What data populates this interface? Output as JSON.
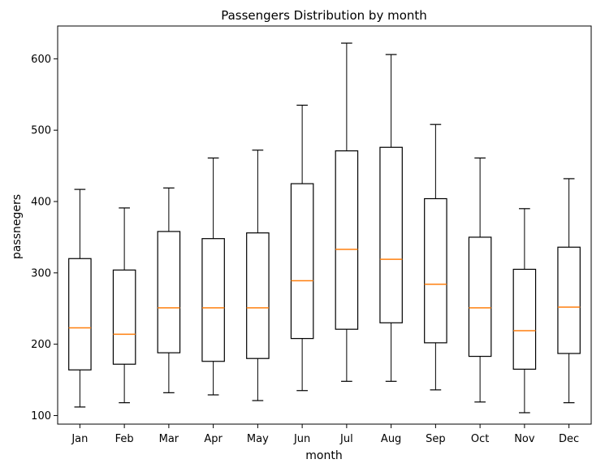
{
  "chart_data": {
    "type": "box",
    "title": "Passengers Distribution by month",
    "xlabel": "month",
    "ylabel": "passnegers",
    "ylim": [
      88,
      646
    ],
    "yticks": [
      100,
      200,
      300,
      400,
      500,
      600
    ],
    "grid": false,
    "categories": [
      "Jan",
      "Feb",
      "Mar",
      "Apr",
      "May",
      "Jun",
      "Jul",
      "Aug",
      "Sep",
      "Oct",
      "Nov",
      "Dec"
    ],
    "boxes": [
      {
        "whisker_low": 112,
        "q1": 164,
        "median": 223,
        "q3": 320,
        "whisker_high": 417
      },
      {
        "whisker_low": 118,
        "q1": 172,
        "median": 214,
        "q3": 304,
        "whisker_high": 391
      },
      {
        "whisker_low": 132,
        "q1": 188,
        "median": 251,
        "q3": 358,
        "whisker_high": 419
      },
      {
        "whisker_low": 129,
        "q1": 176,
        "median": 251,
        "q3": 348,
        "whisker_high": 461
      },
      {
        "whisker_low": 121,
        "q1": 180,
        "median": 251,
        "q3": 356,
        "whisker_high": 472
      },
      {
        "whisker_low": 135,
        "q1": 208,
        "median": 289,
        "q3": 425,
        "whisker_high": 535
      },
      {
        "whisker_low": 148,
        "q1": 221,
        "median": 333,
        "q3": 471,
        "whisker_high": 622
      },
      {
        "whisker_low": 148,
        "q1": 230,
        "median": 319,
        "q3": 476,
        "whisker_high": 606
      },
      {
        "whisker_low": 136,
        "q1": 202,
        "median": 284,
        "q3": 404,
        "whisker_high": 508
      },
      {
        "whisker_low": 119,
        "q1": 183,
        "median": 251,
        "q3": 350,
        "whisker_high": 461
      },
      {
        "whisker_low": 104,
        "q1": 165,
        "median": 219,
        "q3": 305,
        "whisker_high": 390
      },
      {
        "whisker_low": 118,
        "q1": 187,
        "median": 252,
        "q3": 336,
        "whisker_high": 432
      }
    ],
    "colors": {
      "box": "#000000",
      "median": "#ff7f0e",
      "frame": "#000000"
    }
  }
}
